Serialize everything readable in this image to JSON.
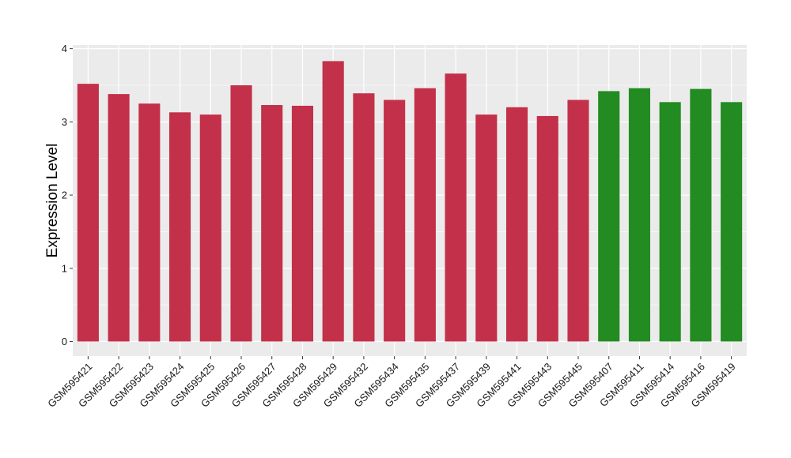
{
  "chart_data": {
    "type": "bar",
    "title": "",
    "xlabel": "",
    "ylabel": "Expression Level",
    "ylim": [
      -0.2,
      4.05
    ],
    "yticks": [
      0,
      1,
      2,
      3,
      4
    ],
    "grid": true,
    "legend": "none",
    "panel_background": "#ebebeb",
    "grid_color": "#ffffff",
    "categories": [
      "GSM595421",
      "GSM595422",
      "GSM595423",
      "GSM595424",
      "GSM595425",
      "GSM595426",
      "GSM595427",
      "GSM595428",
      "GSM595429",
      "GSM595432",
      "GSM595434",
      "GSM595435",
      "GSM595437",
      "GSM595439",
      "GSM595441",
      "GSM595443",
      "GSM595445",
      "GSM595407",
      "GSM595411",
      "GSM595414",
      "GSM595416",
      "GSM595419"
    ],
    "values": [
      3.52,
      3.38,
      3.25,
      3.13,
      3.1,
      3.5,
      3.23,
      3.22,
      3.83,
      3.39,
      3.3,
      3.46,
      3.66,
      3.1,
      3.2,
      3.08,
      3.3,
      3.42,
      3.46,
      3.27,
      3.45,
      3.27
    ],
    "colors": [
      "#c3304a",
      "#c3304a",
      "#c3304a",
      "#c3304a",
      "#c3304a",
      "#c3304a",
      "#c3304a",
      "#c3304a",
      "#c3304a",
      "#c3304a",
      "#c3304a",
      "#c3304a",
      "#c3304a",
      "#c3304a",
      "#c3304a",
      "#c3304a",
      "#c3304a",
      "#228b22",
      "#228b22",
      "#228b22",
      "#228b22",
      "#228b22"
    ]
  }
}
